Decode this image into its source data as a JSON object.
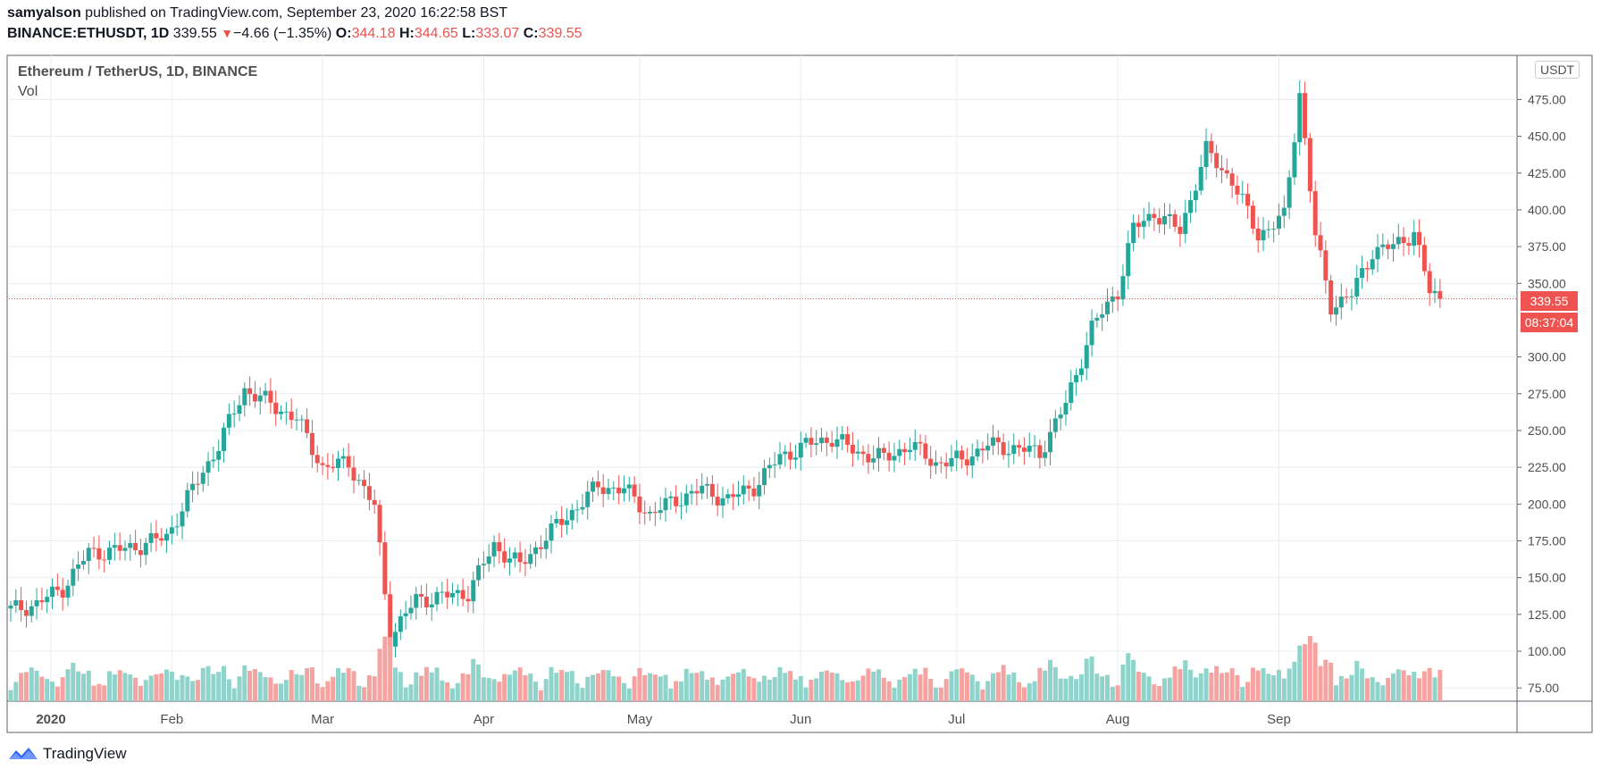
{
  "header": {
    "author": "samyalson",
    "published_text": "published on TradingView.com, September 23, 2020 16:22:58 BST",
    "symbol": "BINANCE:ETHUSDT, 1D",
    "last": "339.55",
    "change": "−4.66 (−1.35%)",
    "o_label": "O:",
    "o_val": "344.18",
    "h_label": "H:",
    "h_val": "344.65",
    "l_label": "L:",
    "l_val": "333.07",
    "c_label": "C:",
    "c_val": "339.55",
    "down_glyph": "▼"
  },
  "legend": {
    "title": "Ethereum / TetherUS, 1D, BINANCE",
    "vol": "Vol"
  },
  "unit": "USDT",
  "price_tag": "339.55",
  "timer_tag": "08:37:04",
  "footer": {
    "brand": "TradingView"
  },
  "colors": {
    "up": "#26a69a",
    "down": "#ef5350",
    "vol_up": "#8fd3cb",
    "vol_down": "#f5a3a0",
    "grid": "#e8ecf1"
  },
  "chart_data": {
    "type": "candlestick",
    "title": "Ethereum / TetherUS, 1D, BINANCE",
    "y_ticks": [
      "475.00",
      "450.00",
      "425.00",
      "400.00",
      "375.00",
      "350.00",
      "300.00",
      "275.00",
      "250.00",
      "225.00",
      "200.00",
      "175.00",
      "150.00",
      "125.00",
      "100.00",
      "75.00"
    ],
    "y_tick_values": [
      475,
      450,
      425,
      400,
      375,
      350,
      300,
      275,
      250,
      225,
      200,
      175,
      150,
      125,
      100,
      75
    ],
    "ylim": [
      66,
      505
    ],
    "x_labels": [
      "2020",
      "Feb",
      "Mar",
      "Apr",
      "May",
      "Jun",
      "Jul",
      "Aug",
      "Sep"
    ],
    "x_label_days": [
      0,
      31,
      60,
      91,
      121,
      152,
      182,
      213,
      244
    ],
    "last_price": 339.55,
    "series": [
      {
        "day": 0,
        "close": 128
      },
      {
        "day": 5,
        "close": 132
      },
      {
        "day": 10,
        "close": 143
      },
      {
        "day": 15,
        "close": 167
      },
      {
        "day": 20,
        "close": 168
      },
      {
        "day": 25,
        "close": 172
      },
      {
        "day": 30,
        "close": 178
      },
      {
        "day": 35,
        "close": 210
      },
      {
        "day": 40,
        "close": 240
      },
      {
        "day": 45,
        "close": 278
      },
      {
        "day": 50,
        "close": 268
      },
      {
        "day": 55,
        "close": 258
      },
      {
        "day": 60,
        "close": 225
      },
      {
        "day": 65,
        "close": 228
      },
      {
        "day": 70,
        "close": 198
      },
      {
        "day": 73,
        "close": 110
      },
      {
        "day": 78,
        "close": 135
      },
      {
        "day": 83,
        "close": 137
      },
      {
        "day": 88,
        "close": 140
      },
      {
        "day": 93,
        "close": 172
      },
      {
        "day": 98,
        "close": 158
      },
      {
        "day": 103,
        "close": 178
      },
      {
        "day": 108,
        "close": 195
      },
      {
        "day": 113,
        "close": 212
      },
      {
        "day": 118,
        "close": 210
      },
      {
        "day": 123,
        "close": 193
      },
      {
        "day": 128,
        "close": 203
      },
      {
        "day": 133,
        "close": 210
      },
      {
        "day": 138,
        "close": 203
      },
      {
        "day": 143,
        "close": 212
      },
      {
        "day": 148,
        "close": 232
      },
      {
        "day": 153,
        "close": 240
      },
      {
        "day": 158,
        "close": 245
      },
      {
        "day": 163,
        "close": 235
      },
      {
        "day": 168,
        "close": 231
      },
      {
        "day": 173,
        "close": 240
      },
      {
        "day": 178,
        "close": 228
      },
      {
        "day": 183,
        "close": 230
      },
      {
        "day": 188,
        "close": 240
      },
      {
        "day": 193,
        "close": 238
      },
      {
        "day": 198,
        "close": 235
      },
      {
        "day": 203,
        "close": 268
      },
      {
        "day": 208,
        "close": 320
      },
      {
        "day": 213,
        "close": 345
      },
      {
        "day": 216,
        "close": 387
      },
      {
        "day": 220,
        "close": 398
      },
      {
        "day": 225,
        "close": 386
      },
      {
        "day": 230,
        "close": 440
      },
      {
        "day": 235,
        "close": 420
      },
      {
        "day": 240,
        "close": 383
      },
      {
        "day": 245,
        "close": 395
      },
      {
        "day": 248,
        "close": 480
      },
      {
        "day": 251,
        "close": 382
      },
      {
        "day": 254,
        "close": 335
      },
      {
        "day": 258,
        "close": 342
      },
      {
        "day": 262,
        "close": 372
      },
      {
        "day": 266,
        "close": 375
      },
      {
        "day": 270,
        "close": 385
      },
      {
        "day": 273,
        "close": 344
      },
      {
        "day": 275,
        "close": 339.55
      }
    ]
  }
}
